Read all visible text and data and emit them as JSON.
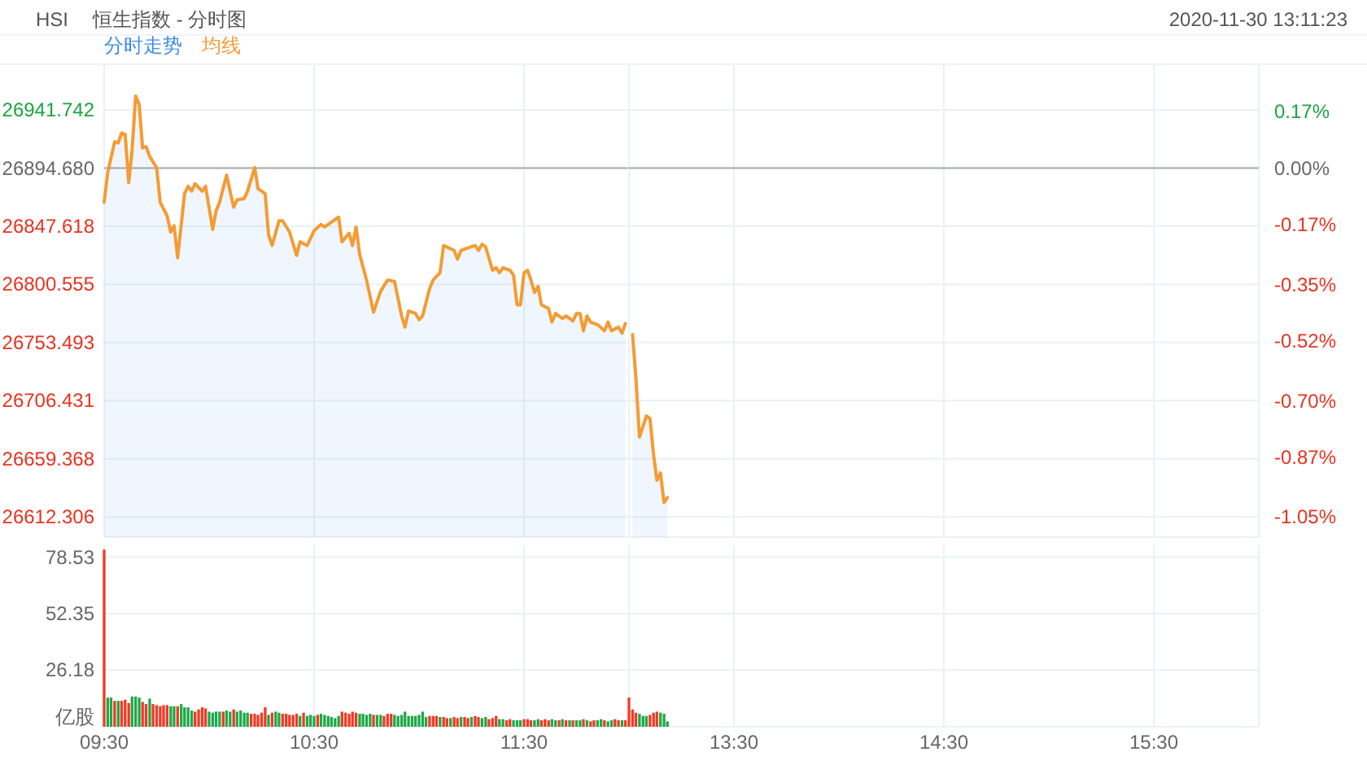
{
  "chart_data": [
    {
      "type": "line",
      "title": "HSI",
      "subtitle": "恒生指数 - 分时图",
      "annotations": [
        "2020-11-30 13:11:23"
      ],
      "x": [
        9.5,
        9.517,
        9.55,
        9.567,
        9.583,
        9.6,
        9.617,
        9.633,
        9.65,
        9.667,
        9.683,
        9.7,
        9.717,
        9.75,
        9.767,
        9.8,
        9.817,
        9.833,
        9.85,
        9.883,
        9.9,
        9.917,
        9.933,
        9.967,
        9.983,
        10.017,
        10.033,
        10.05,
        10.083,
        10.117,
        10.133,
        10.167,
        10.183,
        10.217,
        10.233,
        10.267,
        10.283,
        10.3,
        10.333,
        10.35,
        10.383,
        10.417,
        10.433,
        10.467,
        10.5,
        10.533,
        10.55,
        10.583,
        10.617,
        10.633,
        10.667,
        10.683,
        10.7,
        10.717,
        10.75,
        10.783,
        10.817,
        10.85,
        10.883,
        10.917,
        10.933,
        10.95,
        10.983,
        11,
        11.017,
        11.05,
        11.067,
        11.1,
        11.117,
        11.167,
        11.183,
        11.2,
        11.233,
        11.267,
        11.283,
        11.3,
        11.317,
        11.35,
        11.367,
        11.383,
        11.4,
        11.433,
        11.45,
        11.467,
        11.483,
        11.5,
        11.517,
        11.533,
        11.55,
        11.567,
        11.583,
        11.617,
        11.633,
        11.65,
        11.683,
        11.7,
        11.733,
        11.75,
        11.767,
        11.783,
        11.8,
        11.817,
        11.85,
        11.883,
        11.9,
        11.917,
        11.95,
        11.967,
        11.983
      ],
      "series": [
        {
          "name": "分时走势",
          "type": "area",
          "color": "#3a8ee6",
          "values": [
            26867,
            26891,
            26916,
            26915,
            26923,
            26922,
            26883,
            26909,
            26953,
            26946,
            26911,
            26912,
            26904,
            26895,
            26867,
            26856,
            26843,
            26848,
            26822,
            26874,
            26880,
            26876,
            26882,
            26876,
            26880,
            26845,
            26860,
            26867,
            26889,
            26863,
            26869,
            26870,
            26876,
            26895,
            26878,
            26874,
            26841,
            26832,
            26852,
            26852,
            26843,
            26824,
            26835,
            26832,
            26844,
            26849,
            26847,
            26851,
            26855,
            26835,
            26842,
            26832,
            26847,
            26825,
            26804,
            26778,
            26795,
            26804,
            26803,
            26775,
            26766,
            26779,
            26777,
            26772,
            26775,
            26797,
            26804,
            26810,
            26832,
            26828,
            26821,
            26828,
            26830,
            26832,
            26828,
            26833,
            26831,
            26812,
            26814,
            26810,
            26814,
            26812,
            26808,
            26784,
            26784,
            26810,
            26812,
            26804,
            26794,
            26799,
            26784,
            26781,
            26770,
            26777,
            26773,
            26775,
            26771,
            26777,
            26777,
            26763,
            26775,
            26770,
            26768,
            26763,
            26770,
            26763,
            26766,
            26761,
            26769
          ]
        },
        {
          "name": "均线",
          "type": "line",
          "color": "#f39c34",
          "values": [
            26867,
            26891,
            26916,
            26915,
            26923,
            26922,
            26883,
            26909,
            26953,
            26946,
            26911,
            26912,
            26904,
            26895,
            26867,
            26856,
            26843,
            26848,
            26822,
            26874,
            26880,
            26876,
            26882,
            26876,
            26880,
            26845,
            26860,
            26867,
            26889,
            26863,
            26869,
            26870,
            26876,
            26895,
            26878,
            26874,
            26841,
            26832,
            26852,
            26852,
            26843,
            26824,
            26835,
            26832,
            26844,
            26849,
            26847,
            26851,
            26855,
            26835,
            26842,
            26832,
            26847,
            26825,
            26804,
            26778,
            26795,
            26804,
            26803,
            26775,
            26766,
            26779,
            26777,
            26772,
            26775,
            26797,
            26804,
            26810,
            26832,
            26828,
            26821,
            26828,
            26830,
            26832,
            26828,
            26833,
            26831,
            26812,
            26814,
            26810,
            26814,
            26812,
            26808,
            26784,
            26784,
            26810,
            26812,
            26804,
            26794,
            26799,
            26784,
            26781,
            26770,
            26777,
            26773,
            26775,
            26771,
            26777,
            26777,
            26763,
            26775,
            26770,
            26768,
            26763,
            26770,
            26763,
            26766,
            26761,
            26769
          ]
        }
      ],
      "xlim": [
        9.5,
        12
      ],
      "xticks": [
        {
          "value": 9.5,
          "label": null
        },
        {
          "value": 10.5,
          "label": null
        },
        {
          "value": 11.5,
          "label": null
        }
      ],
      "ylim": [
        26596,
        26978
      ],
      "yticks": [
        {
          "value": 26612.306,
          "label": "26612.306"
        },
        {
          "value": 26659.368,
          "label": "26659.368"
        },
        {
          "value": 26706.431,
          "label": "26706.431"
        },
        {
          "value": 26753.493,
          "label": "26753.493"
        },
        {
          "value": 26800.555,
          "label": "26800.555"
        },
        {
          "value": 26847.618,
          "label": "26847.618"
        },
        {
          "value": 26894.68,
          "label": "26894.680"
        },
        {
          "value": 26941.742,
          "label": "26941.742"
        }
      ],
      "ref_lines": [
        {
          "axis": "y",
          "value": 26894.68,
          "color": "#aaaaaa"
        }
      ],
      "grid": true,
      "legend": "top left",
      "tick_labels": "y"
    },
    {
      "type": "line",
      "x": [
        13.017,
        13.033,
        13.05,
        13.083,
        13.1,
        13.117,
        13.133,
        13.15,
        13.167,
        13.183
      ],
      "series": [
        {
          "type": "area",
          "color": "#3a8ee6",
          "values": [
            26760,
            26725,
            26677,
            26694,
            26692,
            26663,
            26642,
            26648,
            26624,
            26628
          ]
        },
        {
          "type": "line",
          "color": "#f39c34",
          "values": [
            26760,
            26725,
            26677,
            26694,
            26692,
            26663,
            26642,
            26648,
            26624,
            26628
          ]
        }
      ],
      "xlim": [
        13,
        16
      ],
      "xticks": [
        {
          "value": 13.5,
          "label": null
        },
        {
          "value": 14.5,
          "label": null
        },
        {
          "value": 15.5,
          "label": null
        }
      ],
      "ylim": [
        26596,
        26978
      ],
      "y2lim": [
        -1.11,
        0.31
      ],
      "y2ticks": [
        {
          "value": -1.05,
          "label": "-1.05%"
        },
        {
          "value": -0.87,
          "label": "-0.87%"
        },
        {
          "value": -0.7,
          "label": "-0.70%"
        },
        {
          "value": -0.52,
          "label": "-0.52%"
        },
        {
          "value": -0.35,
          "label": "-0.35%"
        },
        {
          "value": -0.17,
          "label": "-0.17%"
        },
        {
          "value": 0,
          "label": "0.00%"
        },
        {
          "value": 0.17,
          "label": "0.17%"
        }
      ],
      "ref_lines": [
        {
          "axis": "y",
          "value": 26894.68,
          "color": "#aaaaaa"
        }
      ],
      "grid": "x",
      "tick_labels": "y"
    },
    {
      "type": "bar",
      "ylabel": "亿股",
      "x": [
        9.5,
        9.517,
        9.533,
        9.55,
        9.567,
        9.583,
        9.6,
        9.617,
        9.633,
        9.65,
        9.667,
        9.683,
        9.7,
        9.717,
        9.733,
        9.75,
        9.767,
        9.783,
        9.8,
        9.817,
        9.833,
        9.85,
        9.867,
        9.883,
        9.9,
        9.917,
        9.933,
        9.95,
        9.967,
        9.983,
        10,
        10.017,
        10.033,
        10.05,
        10.067,
        10.083,
        10.1,
        10.117,
        10.133,
        10.15,
        10.167,
        10.183,
        10.2,
        10.217,
        10.233,
        10.25,
        10.267,
        10.283,
        10.3,
        10.317,
        10.333,
        10.35,
        10.367,
        10.383,
        10.4,
        10.417,
        10.433,
        10.45,
        10.467,
        10.483,
        10.5,
        10.517,
        10.533,
        10.55,
        10.567,
        10.583,
        10.6,
        10.617,
        10.633,
        10.65,
        10.667,
        10.683,
        10.7,
        10.717,
        10.733,
        10.75,
        10.767,
        10.783,
        10.8,
        10.817,
        10.833,
        10.85,
        10.867,
        10.883,
        10.9,
        10.917,
        10.933,
        10.95,
        10.967,
        10.983,
        11,
        11.017,
        11.033,
        11.05,
        11.067,
        11.083,
        11.1,
        11.117,
        11.133,
        11.15,
        11.167,
        11.183,
        11.2,
        11.217,
        11.233,
        11.25,
        11.267,
        11.283,
        11.3,
        11.317,
        11.333,
        11.35,
        11.367,
        11.383,
        11.4,
        11.417,
        11.433,
        11.45,
        11.467,
        11.483,
        11.5,
        11.517,
        11.533,
        11.55,
        11.567,
        11.583,
        11.6,
        11.617,
        11.633,
        11.65,
        11.667,
        11.683,
        11.7,
        11.717,
        11.733,
        11.75,
        11.767,
        11.783,
        11.8,
        11.817,
        11.833,
        11.85,
        11.867,
        11.883,
        11.9,
        11.917,
        11.933,
        11.95,
        11.967,
        11.983
      ],
      "values": [
        82,
        13.5,
        13.5,
        12,
        12,
        12,
        12.5,
        11,
        14,
        14,
        13.5,
        11.5,
        10.5,
        13,
        10.5,
        10,
        9.5,
        10,
        10,
        9.5,
        9.5,
        9.5,
        10.5,
        9,
        9,
        7.5,
        7,
        8,
        9,
        8.5,
        7,
        6.5,
        7,
        7,
        7,
        7.5,
        7,
        8,
        7,
        7.5,
        6.5,
        6.5,
        6,
        6,
        5.5,
        6.5,
        9,
        5.5,
        6.5,
        7,
        6.5,
        6,
        6,
        5.5,
        5.5,
        6,
        5,
        6.5,
        5,
        5.5,
        5,
        5.5,
        6,
        5.5,
        5,
        4.5,
        4,
        5,
        7,
        6.5,
        6,
        7,
        6.5,
        6,
        6,
        5.5,
        6,
        5.5,
        5.5,
        5.5,
        5,
        6,
        6,
        5.5,
        5,
        5.5,
        7,
        5,
        5,
        5,
        5.5,
        7,
        4.5,
        5,
        5,
        5,
        4.5,
        4.5,
        4,
        4,
        4.5,
        4,
        4.5,
        4.5,
        4,
        4.5,
        5,
        4.5,
        4,
        4.5,
        3.5,
        4,
        5,
        3.5,
        3.5,
        3,
        3.5,
        3,
        3,
        3,
        3.5,
        3.5,
        3,
        3,
        3.5,
        3,
        3.5,
        3,
        3.5,
        3,
        3,
        3.5,
        3,
        3,
        3,
        3,
        3,
        3.5,
        3,
        2.5,
        3,
        3,
        3.5,
        3,
        2.5,
        3,
        3.5,
        3,
        3,
        3
      ],
      "colors": [
        "#f23a22",
        "#1fa84a",
        "#1fa84a",
        "#f23a22",
        "#1fa84a",
        "#f23a22",
        "#f23a22",
        "#f23a22",
        "#1fa84a",
        "#1fa84a",
        "#1fa84a",
        "#f23a22",
        "#f23a22",
        "#1fa84a",
        "#f23a22",
        "#f23a22",
        "#f23a22",
        "#f23a22",
        "#f23a22",
        "#1fa84a",
        "#1fa84a",
        "#f23a22",
        "#1fa84a",
        "#1fa84a",
        "#1fa84a",
        "#1fa84a",
        "#f23a22",
        "#f23a22",
        "#f23a22",
        "#f23a22",
        "#1fa84a",
        "#1fa84a",
        "#1fa84a",
        "#1fa84a",
        "#f23a22",
        "#1fa84a",
        "#1fa84a",
        "#f23a22",
        "#1fa84a",
        "#1fa84a",
        "#1fa84a",
        "#1fa84a",
        "#f23a22",
        "#f23a22",
        "#f23a22",
        "#f23a22",
        "#f23a22",
        "#1fa84a",
        "#f23a22",
        "#1fa84a",
        "#1fa84a",
        "#f23a22",
        "#f23a22",
        "#f23a22",
        "#f23a22",
        "#f23a22",
        "#1fa84a",
        "#f23a22",
        "#1fa84a",
        "#1fa84a",
        "#1fa84a",
        "#f23a22",
        "#1fa84a",
        "#1fa84a",
        "#1fa84a",
        "#1fa84a",
        "#1fa84a",
        "#1fa84a",
        "#f23a22",
        "#f23a22",
        "#f23a22",
        "#f23a22",
        "#f23a22",
        "#1fa84a",
        "#1fa84a",
        "#1fa84a",
        "#1fa84a",
        "#f23a22",
        "#1fa84a",
        "#1fa84a",
        "#f23a22",
        "#f23a22",
        "#f23a22",
        "#1fa84a",
        "#1fa84a",
        "#1fa84a",
        "#1fa84a",
        "#1fa84a",
        "#1fa84a",
        "#1fa84a",
        "#1fa84a",
        "#1fa84a",
        "#1fa84a",
        "#f23a22",
        "#f23a22",
        "#f23a22",
        "#1fa84a",
        "#f23a22",
        "#f23a22",
        "#1fa84a",
        "#f23a22",
        "#f23a22",
        "#1fa84a",
        "#f23a22",
        "#f23a22",
        "#1fa84a",
        "#f23a22",
        "#f23a22",
        "#1fa84a",
        "#1fa84a",
        "#f23a22",
        "#f23a22",
        "#f23a22",
        "#1fa84a",
        "#1fa84a",
        "#f23a22",
        "#f23a22",
        "#1fa84a",
        "#1fa84a",
        "#1fa84a",
        "#f23a22",
        "#f23a22",
        "#f23a22",
        "#1fa84a",
        "#1fa84a",
        "#f23a22",
        "#f23a22",
        "#f23a22",
        "#1fa84a",
        "#1fa84a",
        "#f23a22",
        "#1fa84a",
        "#f23a22",
        "#1fa84a",
        "#f23a22",
        "#1fa84a",
        "#1fa84a",
        "#f23a22",
        "#1fa84a",
        "#f23a22",
        "#f23a22",
        "#1fa84a",
        "#1fa84a",
        "#f23a22",
        "#1fa84a",
        "#1fa84a",
        "#f23a22",
        "#f23a22",
        "#1fa84a",
        "#f23a22"
      ],
      "xlim": [
        9.5,
        12
      ],
      "xticks": [
        {
          "value": 9.5,
          "label": "09:30"
        },
        {
          "value": 10.5,
          "label": "10:30"
        },
        {
          "value": 11.5,
          "label": "11:30"
        }
      ],
      "ylim": [
        0,
        84
      ],
      "yticks": [
        26.18,
        52.35,
        78.53
      ],
      "grid": true
    },
    {
      "type": "bar",
      "x": [
        13,
        13.017,
        13.033,
        13.05,
        13.067,
        13.083,
        13.1,
        13.117,
        13.133,
        13.15,
        13.167,
        13.183
      ],
      "values": [
        13.5,
        8,
        6.5,
        6,
        5,
        5,
        5.5,
        6.5,
        7,
        6.5,
        6,
        2.5
      ],
      "colors": [
        "#f23a22",
        "#f23a22",
        "#f23a22",
        "#1fa84a",
        "#1fa84a",
        "#1fa84a",
        "#f23a22",
        "#f23a22",
        "#f23a22",
        "#1fa84a",
        "#1fa84a",
        "#1fa84a"
      ],
      "xlim": [
        13,
        16
      ],
      "xticks": [
        {
          "value": 13.5,
          "label": "13:30"
        },
        {
          "value": 14.5,
          "label": "14:30"
        },
        {
          "value": 15.5,
          "label": "15:30"
        }
      ],
      "ylim": [
        0,
        84
      ],
      "grid": "x",
      "tick_labels": "x"
    }
  ]
}
